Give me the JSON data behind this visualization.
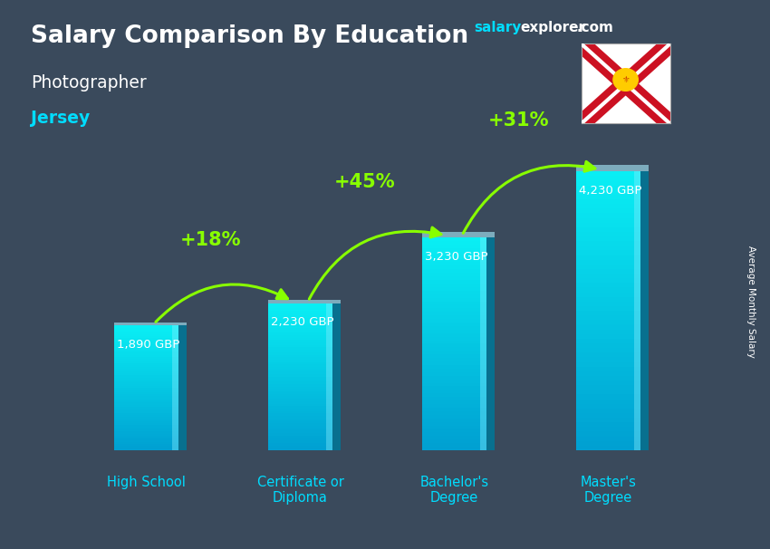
{
  "title": "Salary Comparison By Education",
  "subtitle": "Photographer",
  "location": "Jersey",
  "categories": [
    "High School",
    "Certificate or\nDiploma",
    "Bachelor's\nDegree",
    "Master's\nDegree"
  ],
  "values": [
    1890,
    2230,
    3230,
    4230
  ],
  "labels": [
    "1,890 GBP",
    "2,230 GBP",
    "3,230 GBP",
    "4,230 GBP"
  ],
  "pct_changes": [
    "+18%",
    "+45%",
    "+31%"
  ],
  "bar_color_main": "#00ccee",
  "bar_color_light": "#44ddff",
  "bar_color_dark": "#0099cc",
  "bar_color_side": "#007799",
  "background_color": "#3a4a5c",
  "title_color": "#ffffff",
  "subtitle_color": "#ffffff",
  "location_color": "#00ddff",
  "label_color": "#ffffff",
  "pct_color": "#88ff00",
  "arrow_color": "#88ff00",
  "ylabel": "Average Monthly Salary",
  "ylim": [
    0,
    5000
  ],
  "bar_width": 0.42,
  "x_positions": [
    0,
    1,
    2,
    3
  ]
}
